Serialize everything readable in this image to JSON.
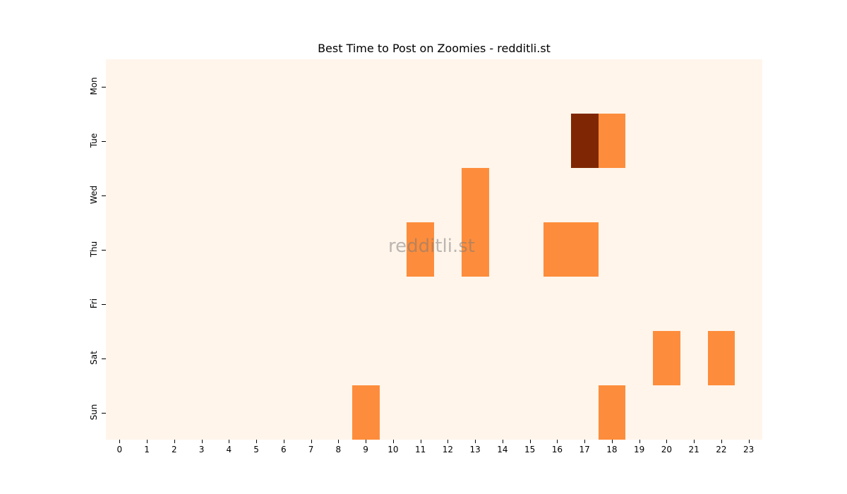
{
  "chart_data": {
    "type": "heatmap",
    "title": "Best Time to Post on Zoomies - redditli.st",
    "xlabel": "",
    "ylabel": "",
    "x_categories": [
      "0",
      "1",
      "2",
      "3",
      "4",
      "5",
      "6",
      "7",
      "8",
      "9",
      "10",
      "11",
      "12",
      "13",
      "14",
      "15",
      "16",
      "17",
      "18",
      "19",
      "20",
      "21",
      "22",
      "23"
    ],
    "y_categories": [
      "Mon",
      "Tue",
      "Wed",
      "Thu",
      "Fri",
      "Sat",
      "Sun"
    ],
    "colormap": "Oranges",
    "values": [
      [
        0,
        0,
        0,
        0,
        0,
        0,
        0,
        0,
        0,
        0,
        0,
        0,
        0,
        0,
        0,
        0,
        0,
        0,
        0,
        0,
        0,
        0,
        0,
        0
      ],
      [
        0,
        0,
        0,
        0,
        0,
        0,
        0,
        0,
        0,
        0,
        0,
        0,
        0,
        0,
        0,
        0,
        0,
        2,
        1,
        0,
        0,
        0,
        0,
        0
      ],
      [
        0,
        0,
        0,
        0,
        0,
        0,
        0,
        0,
        0,
        0,
        0,
        0,
        0,
        1,
        0,
        0,
        0,
        0,
        0,
        0,
        0,
        0,
        0,
        0
      ],
      [
        0,
        0,
        0,
        0,
        0,
        0,
        0,
        0,
        0,
        0,
        0,
        1,
        0,
        1,
        0,
        0,
        1,
        1,
        0,
        0,
        0,
        0,
        0,
        0
      ],
      [
        0,
        0,
        0,
        0,
        0,
        0,
        0,
        0,
        0,
        0,
        0,
        0,
        0,
        0,
        0,
        0,
        0,
        0,
        0,
        0,
        0,
        0,
        0,
        0
      ],
      [
        0,
        0,
        0,
        0,
        0,
        0,
        0,
        0,
        0,
        0,
        0,
        0,
        0,
        0,
        0,
        0,
        0,
        0,
        0,
        0,
        1,
        0,
        1,
        0
      ],
      [
        0,
        0,
        0,
        0,
        0,
        0,
        0,
        0,
        0,
        1,
        0,
        0,
        0,
        0,
        0,
        0,
        0,
        0,
        1,
        0,
        0,
        0,
        0,
        0
      ]
    ],
    "color_scale": {
      "0": "#fff5eb",
      "1": "#fd8d3c",
      "2": "#7f2704"
    },
    "grid": false,
    "legend": "none",
    "watermark": "redditli.st"
  }
}
